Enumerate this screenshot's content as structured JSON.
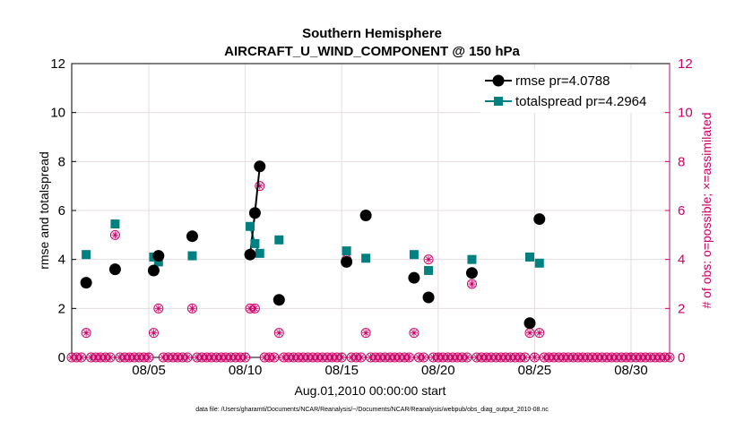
{
  "chart_data": {
    "type": "line",
    "title": "Southern Hemisphere",
    "subtitle": "AIRCRAFT_U_WIND_COMPONENT @ 150 hPa",
    "xlabel": "Aug.01,2010 00:00:00 start",
    "ylabel": "rmse and totalspread",
    "ylabel_right": "# of obs: o=possible; ×=assimilated",
    "footnote": "data file: /Users/gharamti/Documents/NCAR/Reanalysis/~/Documents/NCAR/Reanalysis/webpub/obs_diag_output_2010-08.nc",
    "xlim": [
      1.0,
      32.0
    ],
    "ylim": [
      0,
      12
    ],
    "ylim_right": [
      0,
      12
    ],
    "x_ticks": [
      5,
      10,
      15,
      20,
      25,
      30
    ],
    "x_tick_labels": [
      "08/05",
      "08/10",
      "08/15",
      "08/20",
      "08/25",
      "08/30"
    ],
    "y_ticks": [
      0,
      2,
      4,
      6,
      8,
      10,
      12
    ],
    "y_tick_labels": [
      "0",
      "2",
      "4",
      "6",
      "8",
      "10",
      "12"
    ],
    "y_right_tick_labels": [
      "0",
      "2",
      "4",
      "6",
      "8",
      "10",
      "12"
    ],
    "colors": {
      "rmse": "#000000",
      "totalspread": "#008080",
      "obs": "#cc0066",
      "grid": "#e6dbe3"
    },
    "series": [
      {
        "name": "rmse",
        "legend": "rmse pr=4.0788",
        "points": [
          [
            1.75,
            3.05
          ],
          [
            3.25,
            3.6
          ],
          [
            5.25,
            3.55
          ],
          [
            5.5,
            4.15
          ],
          [
            7.25,
            4.95
          ],
          [
            10.25,
            4.2
          ],
          [
            10.5,
            5.9
          ],
          [
            10.75,
            7.8
          ],
          [
            11.75,
            2.35
          ],
          [
            15.25,
            3.9
          ],
          [
            16.25,
            5.8
          ],
          [
            18.75,
            3.25
          ],
          [
            19.5,
            2.45
          ],
          [
            21.75,
            3.45
          ],
          [
            24.75,
            1.4
          ],
          [
            25.25,
            5.65
          ]
        ],
        "segments": [
          [
            10.25,
            10.5,
            10.75
          ]
        ]
      },
      {
        "name": "totalspread",
        "legend": "totalspread pr=4.2964",
        "points": [
          [
            1.75,
            4.2
          ],
          [
            3.25,
            5.45
          ],
          [
            5.25,
            4.1
          ],
          [
            5.5,
            3.9
          ],
          [
            7.25,
            4.15
          ],
          [
            10.25,
            5.35
          ],
          [
            10.5,
            4.65
          ],
          [
            10.75,
            4.25
          ],
          [
            11.75,
            4.8
          ],
          [
            15.25,
            4.35
          ],
          [
            16.25,
            4.05
          ],
          [
            18.75,
            4.2
          ],
          [
            19.5,
            3.55
          ],
          [
            21.75,
            4.0
          ],
          [
            24.75,
            4.1
          ],
          [
            25.25,
            3.85
          ]
        ],
        "segments": [
          [
            10.25,
            10.5,
            10.75
          ]
        ]
      },
      {
        "name": "obs_possible_assimilated",
        "axis": "right",
        "nonzero": [
          [
            1.75,
            1
          ],
          [
            3.25,
            5
          ],
          [
            5.25,
            1
          ],
          [
            5.5,
            2
          ],
          [
            7.25,
            2
          ],
          [
            10.25,
            2
          ],
          [
            10.5,
            2
          ],
          [
            10.75,
            7
          ],
          [
            11.75,
            1
          ],
          [
            15.25,
            4
          ],
          [
            16.25,
            1
          ],
          [
            18.75,
            1
          ],
          [
            19.5,
            4
          ],
          [
            21.75,
            3
          ],
          [
            24.75,
            1
          ],
          [
            25.25,
            1
          ]
        ],
        "zero_step_days": 0.25,
        "zero_range": [
          1.0,
          32.0
        ]
      }
    ]
  }
}
